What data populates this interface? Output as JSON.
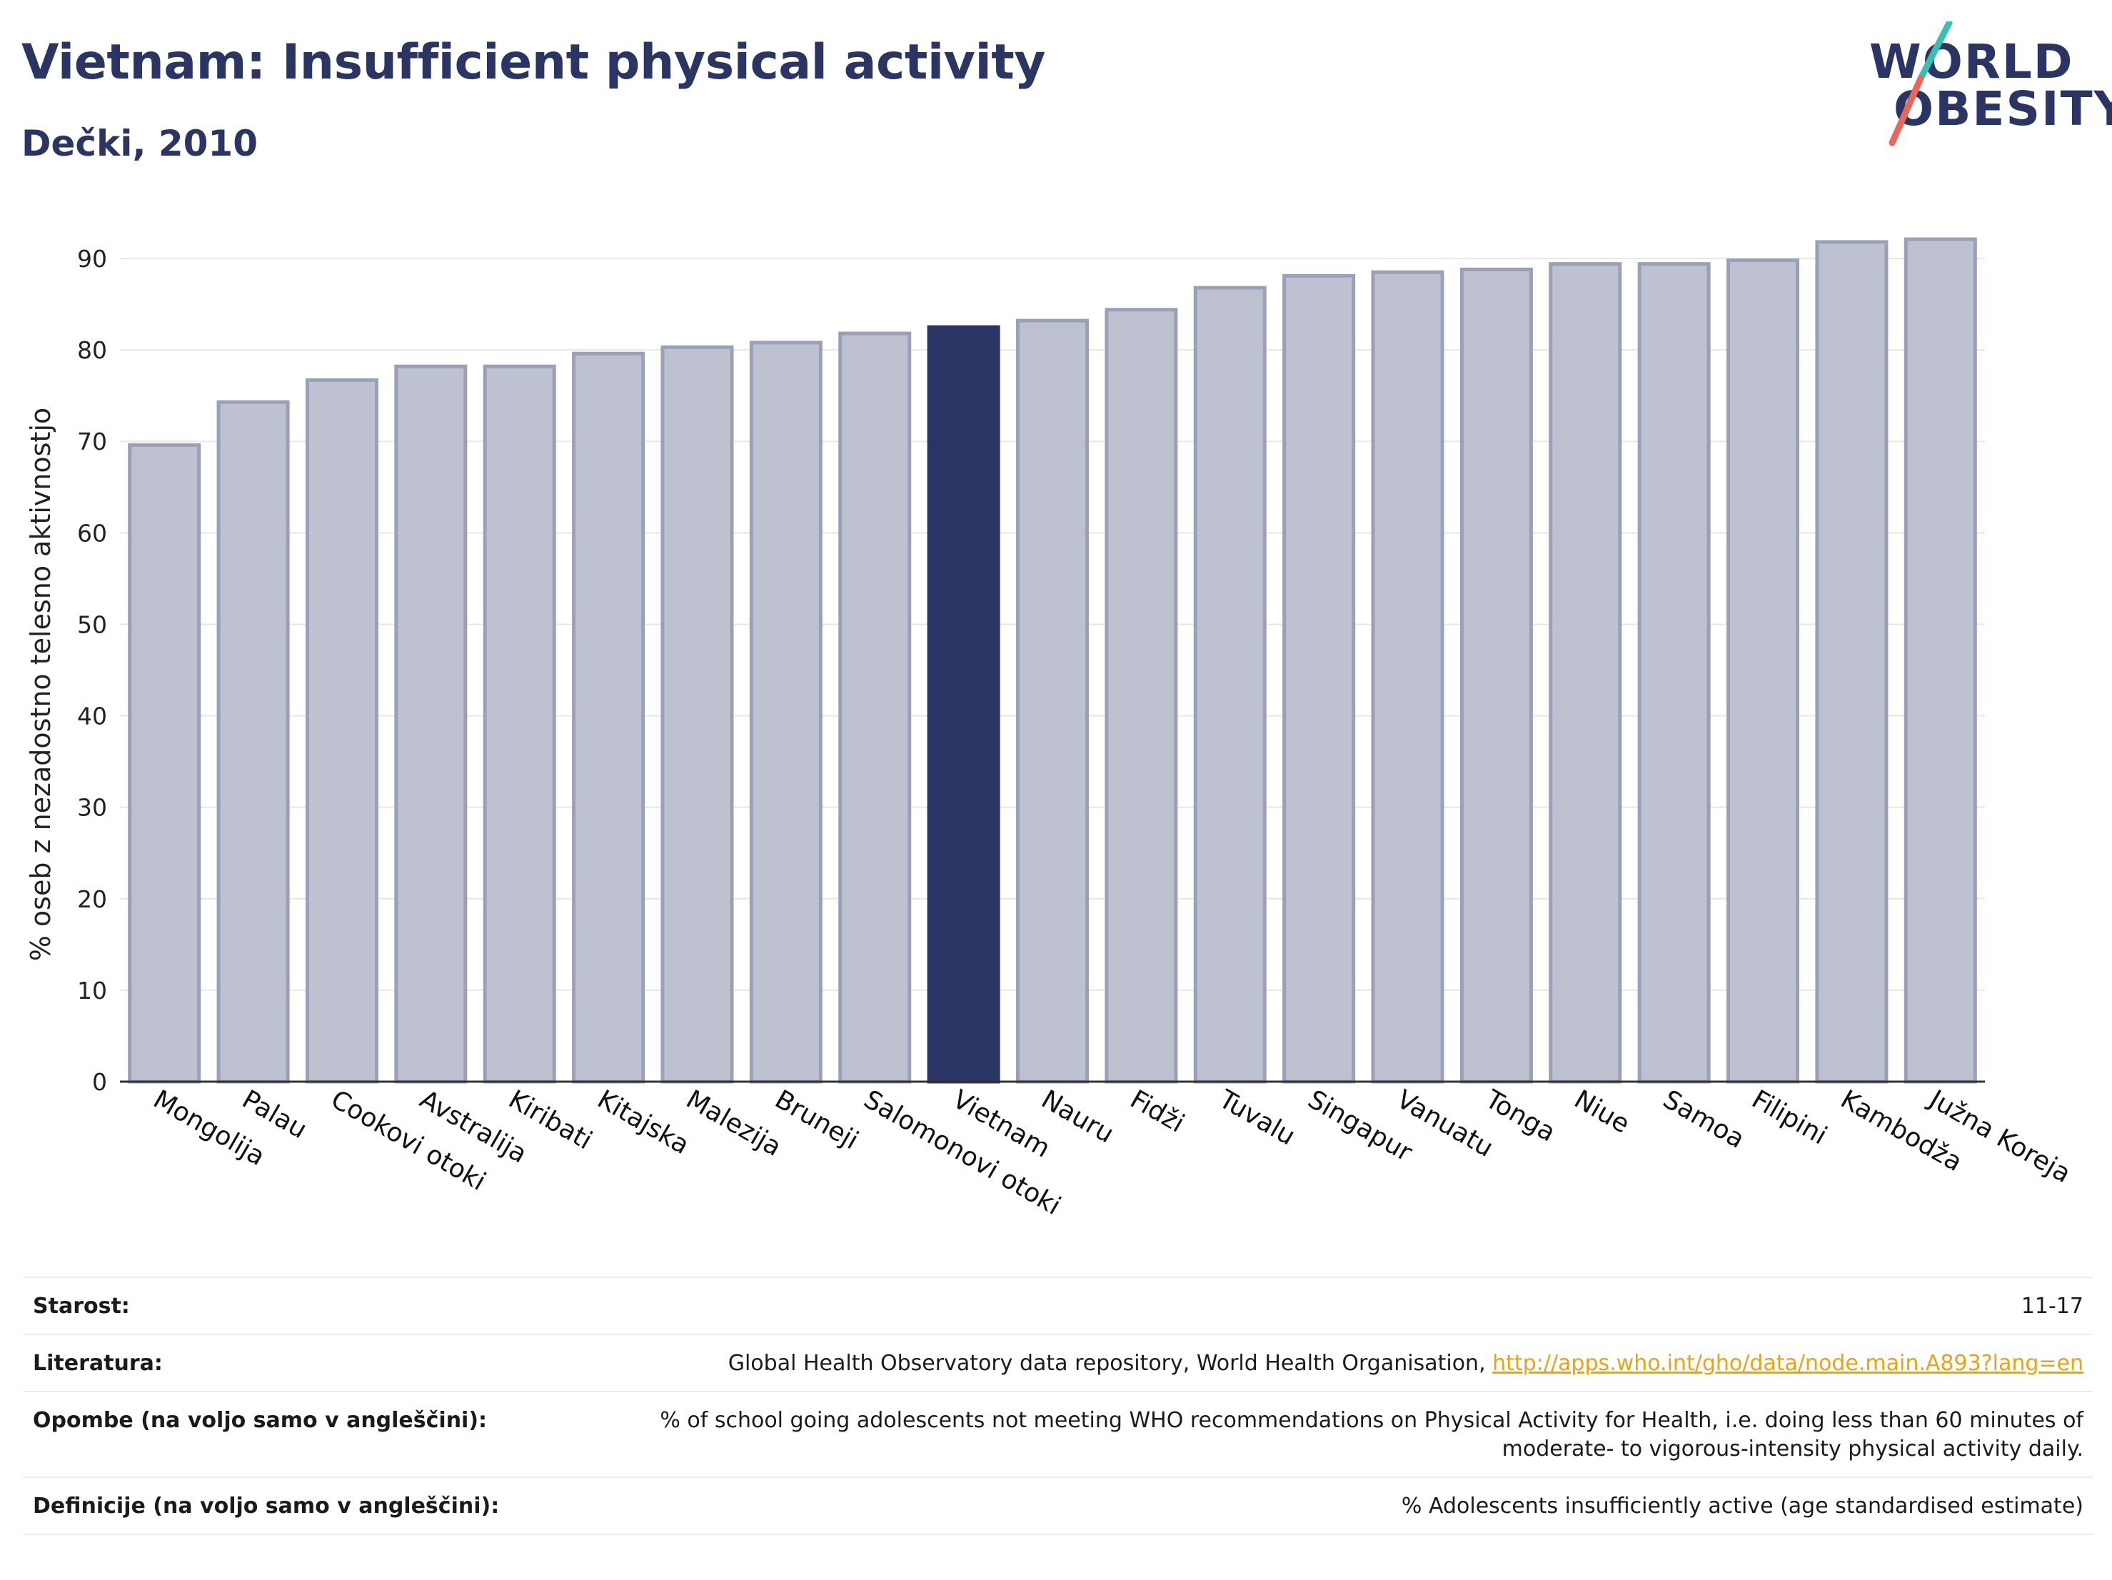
{
  "header": {
    "title": "Vietnam: Insufficient physical activity",
    "subtitle": "Dečki, 2010"
  },
  "logo": {
    "line1": "WORLD",
    "line2": "OBESITY",
    "color_main": "#2a3563",
    "color_accent_teal": "#3bbfb4",
    "color_accent_red": "#e8665a"
  },
  "chart_data": {
    "type": "bar",
    "ylabel": "% oseb z nezadostno telesno aktivnostjo",
    "xlabel": "",
    "ylim": [
      0,
      92
    ],
    "yticks": [
      0,
      10,
      20,
      30,
      40,
      50,
      60,
      70,
      80,
      90
    ],
    "grid": true,
    "categories": [
      "Mongolija",
      "Palau",
      "Cookovi otoki",
      "Avstralija",
      "Kiribati",
      "Kitajska",
      "Malezija",
      "Bruneji",
      "Salomonovi otoki",
      "Vietnam",
      "Nauru",
      "Fidži",
      "Tuvalu",
      "Singapur",
      "Vanuatu",
      "Tonga",
      "Niue",
      "Samoa",
      "Filipini",
      "Kambodža",
      "Južna Koreja"
    ],
    "values": [
      69.6,
      74.3,
      76.7,
      78.2,
      78.2,
      79.6,
      80.3,
      80.8,
      81.8,
      82.5,
      83.2,
      84.4,
      86.8,
      88.1,
      88.5,
      88.8,
      89.4,
      89.4,
      89.8,
      91.8,
      92.1
    ],
    "highlight": "Vietnam",
    "colors": {
      "bar": "#bec2d0",
      "bar_edge": "#9aa0b8",
      "highlight": "#2a3563",
      "grid": "#e6e7ee",
      "axis": "#333333"
    }
  },
  "meta": {
    "rows": [
      {
        "label": "Starost:",
        "value": "11-17"
      },
      {
        "label": "Literatura:",
        "value": "Global Health Observatory data repository, World Health Organisation, ",
        "link": "http://apps.who.int/gho/data/node.main.A893?lang=en"
      },
      {
        "label": "Opombe (na voljo samo v angleščini):",
        "value": "% of school going adolescents not meeting WHO recommendations on Physical Activity for Health, i.e. doing less than 60 minutes of moderate- to vigorous-intensity physical activity daily."
      },
      {
        "label": "Definicije (na voljo samo v angleščini):",
        "value": "% Adolescents insufficiently active (age standardised estimate)"
      }
    ]
  }
}
